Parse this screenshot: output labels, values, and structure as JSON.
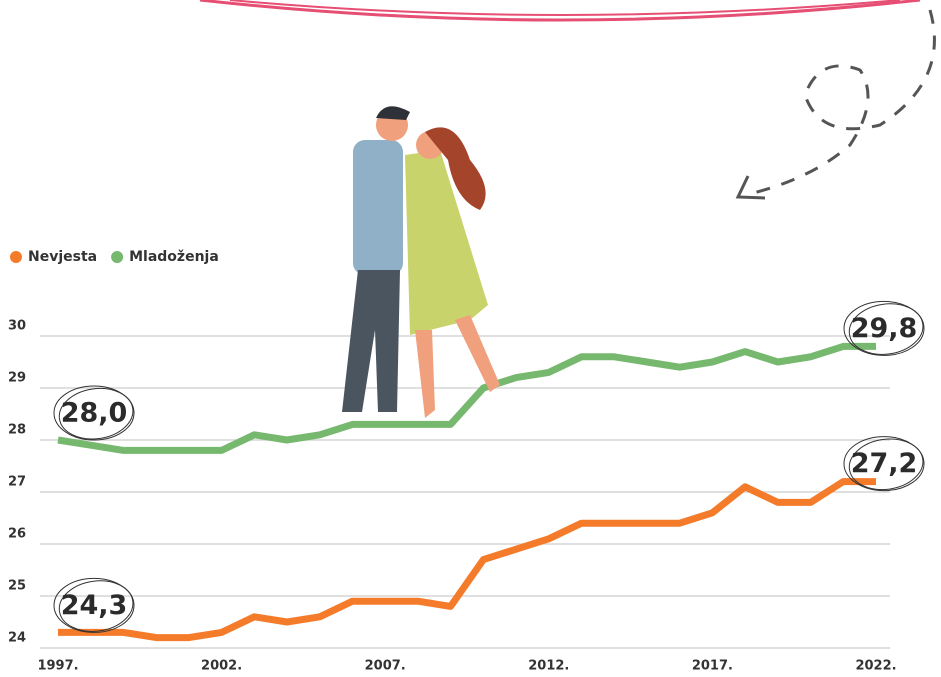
{
  "chart_data": {
    "type": "line",
    "categories": [
      "1997.",
      null,
      null,
      null,
      null,
      "2002.",
      null,
      null,
      null,
      null,
      "2007.",
      null,
      null,
      null,
      null,
      "2012.",
      null,
      null,
      null,
      null,
      "2017.",
      null,
      null,
      null,
      null,
      "2022."
    ],
    "series": [
      {
        "name": "Nevjesta",
        "color": "#f47b2a",
        "values": [
          24.3,
          24.3,
          24.3,
          24.2,
          24.2,
          24.3,
          24.6,
          24.5,
          24.6,
          24.9,
          24.9,
          24.9,
          24.8,
          25.7,
          25.9,
          26.1,
          26.4,
          26.4,
          26.4,
          26.4,
          26.6,
          27.1,
          26.8,
          26.8,
          27.2,
          27.2
        ],
        "value_labels": [
          "24,3",
          null,
          null,
          null,
          null,
          null,
          null,
          null,
          null,
          null,
          null,
          null,
          null,
          null,
          null,
          null,
          null,
          null,
          null,
          null,
          null,
          null,
          null,
          null,
          null,
          "27,2"
        ]
      },
      {
        "name": "Mladoženja",
        "color": "#77b86f",
        "values": [
          28.0,
          27.9,
          27.8,
          27.8,
          27.8,
          27.8,
          28.1,
          28.0,
          28.1,
          28.3,
          28.3,
          28.3,
          28.3,
          29.0,
          29.2,
          29.3,
          29.6,
          29.6,
          29.5,
          29.4,
          29.5,
          29.7,
          29.5,
          29.6,
          29.8,
          29.8
        ],
        "value_labels": [
          "28,0",
          null,
          null,
          null,
          null,
          null,
          null,
          null,
          null,
          null,
          null,
          null,
          null,
          null,
          null,
          null,
          null,
          null,
          null,
          null,
          null,
          null,
          null,
          null,
          null,
          "29,8"
        ]
      }
    ],
    "ylim": [
      24,
      30
    ],
    "yticks": [
      24,
      25,
      26,
      27,
      28,
      29,
      30
    ],
    "grid": true,
    "legend": "top-left"
  }
}
